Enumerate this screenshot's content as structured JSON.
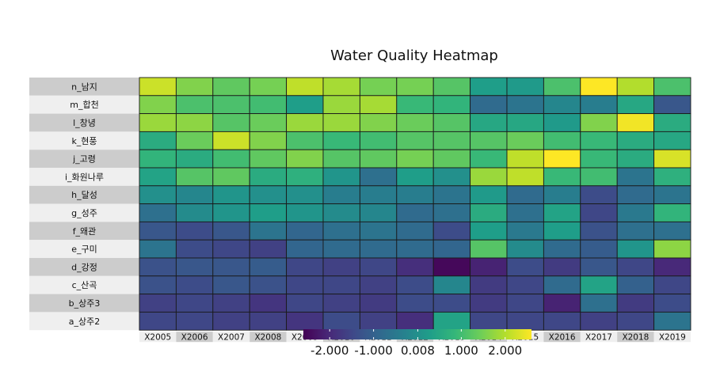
{
  "chart_data": {
    "type": "heatmap",
    "title": "Water Quality Heatmap",
    "xlabel": "",
    "ylabel": "",
    "x_categories": [
      "X2005",
      "X2006",
      "X2007",
      "X2008",
      "X2009",
      "X2010",
      "X2011",
      "X2012",
      "X2013",
      "X2014",
      "X2015",
      "X2016",
      "X2017",
      "X2018",
      "X2019"
    ],
    "y_categories": [
      "n_남지",
      "m_합천",
      "l_창녕",
      "k_현풍",
      "j_고령",
      "i_화원나루",
      "h_달성",
      "g_성주",
      "f_왜관",
      "e_구미",
      "d_강정",
      "c_산곡",
      "b_상주3",
      "a_상주2"
    ],
    "values": [
      [
        2.2,
        1.6,
        1.3,
        1.5,
        2.1,
        1.9,
        1.5,
        1.5,
        1.2,
        0.3,
        0.2,
        1.1,
        2.6,
        2.0,
        1.1
      ],
      [
        1.6,
        1.1,
        1.1,
        1.0,
        0.3,
        1.8,
        1.9,
        0.9,
        0.8,
        -0.8,
        -0.6,
        -0.2,
        -0.4,
        0.5,
        -1.2
      ],
      [
        1.8,
        1.7,
        1.2,
        1.4,
        1.8,
        1.8,
        1.6,
        1.4,
        1.2,
        0.5,
        0.5,
        0.2,
        1.6,
        2.5,
        0.6
      ],
      [
        0.6,
        1.4,
        2.2,
        1.6,
        1.1,
        0.9,
        1.0,
        1.2,
        1.2,
        1.2,
        1.4,
        1.0,
        0.9,
        0.6,
        0.5
      ],
      [
        0.8,
        0.6,
        1.0,
        1.3,
        1.6,
        1.2,
        1.3,
        1.5,
        1.3,
        0.9,
        2.1,
        2.6,
        0.9,
        0.6,
        2.3
      ],
      [
        0.4,
        1.2,
        1.3,
        0.6,
        0.7,
        0.1,
        -0.7,
        0.3,
        0.0,
        1.8,
        2.1,
        0.9,
        1.0,
        -0.6,
        0.7
      ],
      [
        0.0,
        -0.2,
        0.1,
        0.0,
        0.0,
        -0.4,
        -0.4,
        -0.4,
        -0.6,
        0.2,
        -0.8,
        -0.4,
        -1.4,
        -0.8,
        -0.6
      ],
      [
        -0.7,
        -0.1,
        0.1,
        0.3,
        0.1,
        -0.1,
        -0.2,
        -0.8,
        -0.7,
        0.6,
        -0.7,
        0.4,
        -1.5,
        -0.5,
        0.8
      ],
      [
        -1.2,
        -1.4,
        -1.2,
        -0.6,
        -0.9,
        -0.7,
        -0.6,
        -0.8,
        -1.4,
        0.3,
        -0.5,
        0.3,
        -1.3,
        -0.7,
        -0.7
      ],
      [
        -0.6,
        -1.4,
        -1.5,
        -1.6,
        -0.9,
        -0.8,
        -0.8,
        -0.8,
        -0.9,
        1.2,
        -0.1,
        -0.8,
        -1.1,
        0.1,
        1.7
      ],
      [
        -1.3,
        -1.2,
        -1.2,
        -1.1,
        -1.5,
        -1.6,
        -1.5,
        -1.9,
        -2.5,
        -2.1,
        -1.4,
        -1.7,
        -1.2,
        -1.5,
        -2.0
      ],
      [
        -1.3,
        -1.4,
        -1.2,
        -1.3,
        -1.5,
        -1.5,
        -1.6,
        -1.4,
        -0.2,
        -1.7,
        -1.5,
        -0.8,
        0.4,
        -1.0,
        -1.5
      ],
      [
        -1.6,
        -1.5,
        -1.6,
        -1.8,
        -1.5,
        -1.6,
        -1.7,
        -1.4,
        -1.4,
        -1.7,
        -1.5,
        -2.1,
        -0.7,
        -1.7,
        -1.4
      ],
      [
        -1.5,
        -1.5,
        -1.6,
        -1.6,
        -1.8,
        -1.4,
        -1.6,
        -1.9,
        0.4,
        -1.5,
        -1.5,
        -1.5,
        -1.6,
        -1.5,
        -0.6
      ]
    ],
    "colorbar": {
      "palette": "viridis",
      "domain": [
        -2.6,
        2.6
      ],
      "ticks": [
        -2.0,
        -1.0,
        0.008,
        1.0,
        2.0
      ],
      "tick_labels": [
        "-2.000",
        "-1.000",
        "0.008",
        "1.000",
        "2.000"
      ],
      "placement": "bottom"
    },
    "grid": false,
    "cell_border_color": "#1a1a1a",
    "label_band_colors": [
      "#cccccc",
      "#efefef"
    ]
  }
}
